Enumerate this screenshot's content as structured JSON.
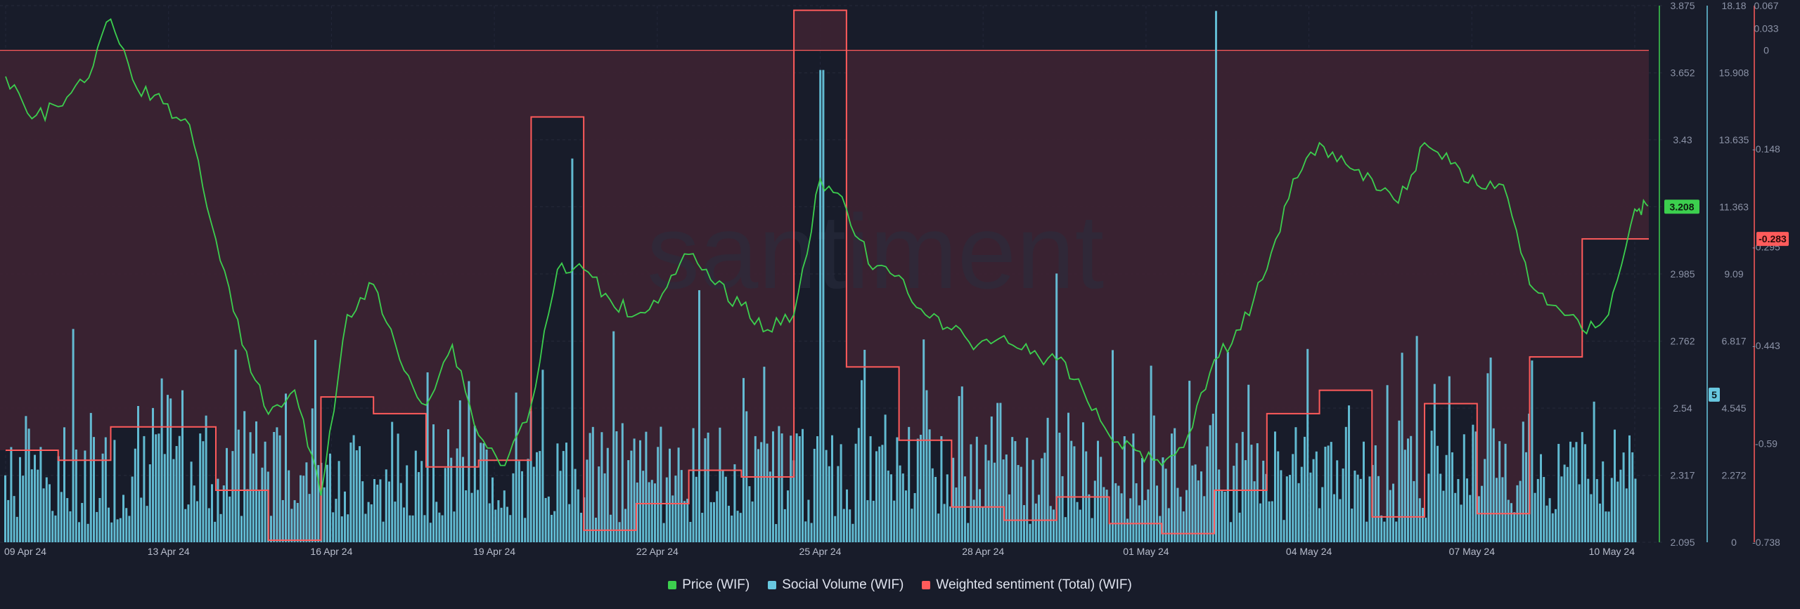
{
  "watermark": "santiment",
  "legend": [
    {
      "label": "Price (WIF)",
      "color": "#3ccf4e"
    },
    {
      "label": "Social Volume (WIF)",
      "color": "#68c8e0"
    },
    {
      "label": "Weighted sentiment (Total) (WIF)",
      "color": "#ff5b5b"
    }
  ],
  "chart_data": {
    "type": "line",
    "x_range": [
      "2024-04-09",
      "2024-05-10"
    ],
    "x_tick_labels": [
      "09 Apr 24",
      "13 Apr 24",
      "16 Apr 24",
      "19 Apr 24",
      "22 Apr 24",
      "25 Apr 24",
      "28 Apr 24",
      "01 May 24",
      "04 May 24",
      "07 May 24",
      "10 May 24"
    ],
    "grid": true,
    "legend_position": "bottom",
    "axes": {
      "price": {
        "ticks": [
          "3.875",
          "3.652",
          "3.43",
          "3.208",
          "2.985",
          "2.762",
          "2.54",
          "2.317",
          "2.095"
        ],
        "range": [
          2.095,
          3.875
        ],
        "current": "3.208"
      },
      "social_volume": {
        "ticks": [
          "18.18",
          "15.908",
          "13.635",
          "11.363",
          "9.09",
          "6.817",
          "4.545",
          "2.272",
          "0"
        ],
        "range": [
          0,
          18.18
        ],
        "current": "5"
      },
      "sentiment": {
        "ticks": [
          "0.067",
          "0.033",
          "0",
          "-0.148",
          "-0.295",
          "-0.443",
          "-0.59",
          "-0.738"
        ],
        "range": [
          -0.738,
          0.067
        ],
        "current": "-0.283"
      }
    },
    "series": [
      {
        "name": "Price (WIF)",
        "color": "#3ccf4e",
        "axis": "price",
        "points": [
          [
            "2024-04-09",
            3.64
          ],
          [
            "2024-04-09T12",
            3.5
          ],
          [
            "2024-04-10",
            3.54
          ],
          [
            "2024-04-10T12",
            3.62
          ],
          [
            "2024-04-11",
            3.83
          ],
          [
            "2024-04-11T12",
            3.6
          ],
          [
            "2024-04-12",
            3.55
          ],
          [
            "2024-04-12T12",
            3.48
          ],
          [
            "2024-04-13",
            3.1
          ],
          [
            "2024-04-13T12",
            2.75
          ],
          [
            "2024-04-14",
            2.52
          ],
          [
            "2024-04-14T12",
            2.6
          ],
          [
            "2024-04-15",
            2.25
          ],
          [
            "2024-04-15T12",
            2.85
          ],
          [
            "2024-04-16",
            2.95
          ],
          [
            "2024-04-16T12",
            2.7
          ],
          [
            "2024-04-17",
            2.55
          ],
          [
            "2024-04-17T12",
            2.75
          ],
          [
            "2024-04-18",
            2.45
          ],
          [
            "2024-04-18T12",
            2.35
          ],
          [
            "2024-04-19",
            2.55
          ],
          [
            "2024-04-19T12",
            3.0
          ],
          [
            "2024-04-20",
            3.0
          ],
          [
            "2024-04-20T12",
            2.9
          ],
          [
            "2024-04-21",
            2.85
          ],
          [
            "2024-04-21T12",
            2.92
          ],
          [
            "2024-04-22",
            3.05
          ],
          [
            "2024-04-22T12",
            2.95
          ],
          [
            "2024-04-23",
            2.88
          ],
          [
            "2024-04-23T12",
            2.8
          ],
          [
            "2024-04-24",
            2.85
          ],
          [
            "2024-04-24T12",
            3.3
          ],
          [
            "2024-04-25",
            3.2
          ],
          [
            "2024-04-25T12",
            3.0
          ],
          [
            "2024-04-26",
            2.98
          ],
          [
            "2024-04-26T12",
            2.85
          ],
          [
            "2024-04-27",
            2.8
          ],
          [
            "2024-04-27T12",
            2.75
          ],
          [
            "2024-04-28",
            2.78
          ],
          [
            "2024-04-28T12",
            2.72
          ],
          [
            "2024-04-29",
            2.7
          ],
          [
            "2024-04-29T12",
            2.6
          ],
          [
            "2024-04-30",
            2.45
          ],
          [
            "2024-04-30T12",
            2.4
          ],
          [
            "2024-05-01",
            2.35
          ],
          [
            "2024-05-01T12",
            2.45
          ],
          [
            "2024-05-02",
            2.7
          ],
          [
            "2024-05-02T12",
            2.8
          ],
          [
            "2024-05-03",
            3.0
          ],
          [
            "2024-05-03T12",
            3.3
          ],
          [
            "2024-05-04",
            3.42
          ],
          [
            "2024-05-04T12",
            3.35
          ],
          [
            "2024-05-05",
            3.3
          ],
          [
            "2024-05-05T12",
            3.22
          ],
          [
            "2024-05-06",
            3.42
          ],
          [
            "2024-05-06T12",
            3.35
          ],
          [
            "2024-05-07",
            3.28
          ],
          [
            "2024-05-07T12",
            3.28
          ],
          [
            "2024-05-08",
            2.95
          ],
          [
            "2024-05-08T12",
            2.88
          ],
          [
            "2024-05-09",
            2.8
          ],
          [
            "2024-05-09T12",
            2.85
          ],
          [
            "2024-05-10",
            3.2
          ],
          [
            "2024-05-10T06",
            3.21
          ]
        ]
      },
      {
        "name": "Social Volume (WIF)",
        "color": "#68c8e0",
        "axis": "social_volume",
        "note_peaks": [
          [
            "2024-04-19T18",
            13
          ],
          [
            "2024-04-24T12",
            16
          ],
          [
            "2024-05-02",
            18
          ]
        ]
      },
      {
        "name": "Weighted sentiment (Total) (WIF)",
        "color": "#ff5b5b",
        "axis": "sentiment",
        "step_points": [
          [
            "2024-04-09",
            -0.6
          ],
          [
            "2024-04-10",
            -0.615
          ],
          [
            "2024-04-11",
            -0.565
          ],
          [
            "2024-04-13",
            -0.66
          ],
          [
            "2024-04-14",
            -0.735
          ],
          [
            "2024-04-15",
            -0.52
          ],
          [
            "2024-04-16",
            -0.545
          ],
          [
            "2024-04-17",
            -0.625
          ],
          [
            "2024-04-18",
            -0.615
          ],
          [
            "2024-04-19",
            -0.1
          ],
          [
            "2024-04-20",
            -0.72
          ],
          [
            "2024-04-21",
            -0.68
          ],
          [
            "2024-04-22",
            -0.63
          ],
          [
            "2024-04-23",
            -0.64
          ],
          [
            "2024-04-24",
            0.06
          ],
          [
            "2024-04-25",
            -0.475
          ],
          [
            "2024-04-26",
            -0.585
          ],
          [
            "2024-04-27",
            -0.685
          ],
          [
            "2024-04-28",
            -0.705
          ],
          [
            "2024-04-29",
            -0.67
          ],
          [
            "2024-04-30",
            -0.71
          ],
          [
            "2024-05-01",
            -0.725
          ],
          [
            "2024-05-02",
            -0.66
          ],
          [
            "2024-05-03",
            -0.545
          ],
          [
            "2024-05-04",
            -0.51
          ],
          [
            "2024-05-05",
            -0.7
          ],
          [
            "2024-05-06",
            -0.53
          ],
          [
            "2024-05-07",
            -0.695
          ],
          [
            "2024-05-08",
            -0.46
          ],
          [
            "2024-05-09",
            -0.283
          ],
          [
            "2024-05-10",
            -0.283
          ]
        ]
      }
    ]
  }
}
